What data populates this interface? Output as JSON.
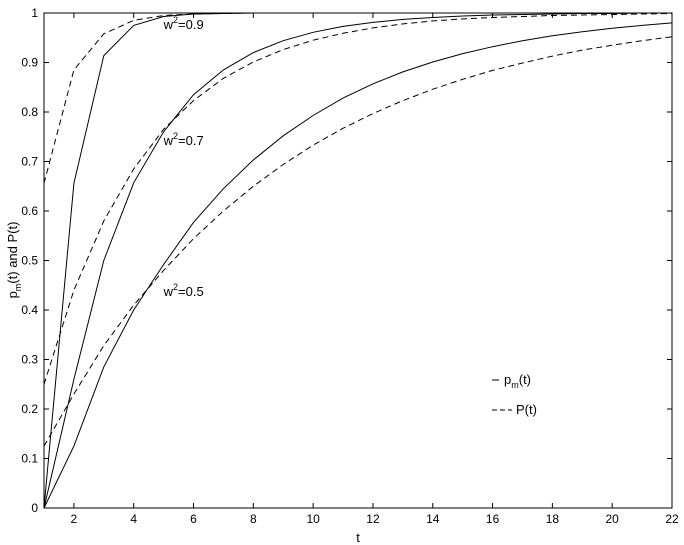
{
  "chart_data": {
    "type": "line",
    "xlabel": "t",
    "ylabel": "p_m(t) and P(t)",
    "xlim": [
      1,
      22
    ],
    "ylim": [
      0,
      1
    ],
    "x": [
      1,
      2,
      3,
      4,
      5,
      6,
      7,
      8,
      9,
      10,
      11,
      12,
      13,
      14,
      15,
      16,
      17,
      18,
      19,
      20,
      21,
      22
    ],
    "xticks": [
      2,
      4,
      6,
      8,
      10,
      12,
      14,
      16,
      18,
      20,
      22
    ],
    "yticks": [
      0,
      0.1,
      0.2,
      0.3,
      0.4,
      0.5,
      0.6,
      0.7,
      0.8,
      0.9,
      1
    ],
    "grid": false,
    "legend_position": "lower-right",
    "legend": [
      {
        "name": "p_m(t)",
        "style": "solid"
      },
      {
        "name": "P(t)",
        "style": "dashed"
      }
    ],
    "annotations": [
      {
        "text": "w^2=0.9",
        "x": 5,
        "y": 0.98
      },
      {
        "text": "w^2=0.7",
        "x": 5,
        "y": 0.745
      },
      {
        "text": "w^2=0.5",
        "x": 5,
        "y": 0.44
      }
    ],
    "series": [
      {
        "group": "w^2=0.9",
        "style": "solid",
        "values": [
          0,
          0.656,
          0.914,
          0.975,
          0.993,
          0.998,
          0.999,
          1,
          1,
          1,
          1,
          1,
          1,
          1,
          1,
          1,
          1,
          1,
          1,
          1,
          1,
          1
        ]
      },
      {
        "group": "w^2=0.9",
        "style": "dashed",
        "values": [
          0.656,
          0.885,
          0.958,
          0.985,
          0.995,
          0.998,
          0.999,
          1,
          1,
          1,
          1,
          1,
          1,
          1,
          1,
          1,
          1,
          1,
          1,
          1,
          1,
          1
        ]
      },
      {
        "group": "w^2=0.7",
        "style": "solid",
        "values": [
          0,
          0.26,
          0.5,
          0.657,
          0.76,
          0.835,
          0.885,
          0.92,
          0.944,
          0.961,
          0.973,
          0.981,
          0.987,
          0.991,
          0.994,
          0.996,
          0.997,
          0.998,
          0.999,
          0.999,
          1,
          1
        ]
      },
      {
        "group": "w^2=0.7",
        "style": "dashed",
        "values": [
          0.25,
          0.44,
          0.58,
          0.685,
          0.765,
          0.823,
          0.868,
          0.901,
          0.926,
          0.945,
          0.959,
          0.97,
          0.978,
          0.984,
          0.988,
          0.991,
          0.993,
          0.995,
          0.996,
          0.997,
          0.998,
          0.999
        ]
      },
      {
        "group": "w^2=0.5",
        "style": "solid",
        "values": [
          0,
          0.125,
          0.285,
          0.4,
          0.492,
          0.577,
          0.645,
          0.703,
          0.752,
          0.793,
          0.828,
          0.857,
          0.881,
          0.901,
          0.918,
          0.932,
          0.944,
          0.954,
          0.962,
          0.969,
          0.975,
          0.98
        ]
      },
      {
        "group": "w^2=0.5",
        "style": "dashed",
        "values": [
          0.125,
          0.23,
          0.328,
          0.41,
          0.48,
          0.544,
          0.6,
          0.65,
          0.694,
          0.733,
          0.767,
          0.797,
          0.823,
          0.846,
          0.866,
          0.884,
          0.899,
          0.913,
          0.925,
          0.935,
          0.944,
          0.952
        ]
      }
    ]
  }
}
